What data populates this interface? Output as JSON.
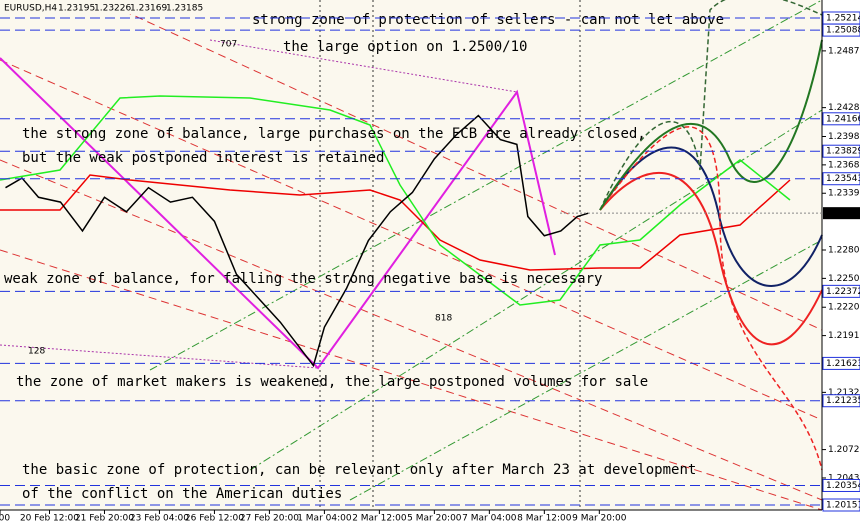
{
  "chart_data": {
    "type": "line",
    "title": "EURUSD,H4",
    "ohlc": [
      1.23195,
      1.23226,
      1.23169,
      1.23185
    ],
    "x": [
      0,
      3,
      6,
      10,
      14,
      18,
      22,
      26,
      30,
      34,
      38,
      42,
      46,
      50,
      54,
      56,
      58,
      62,
      66,
      70,
      74,
      78,
      82,
      86,
      90,
      93,
      95,
      98,
      101,
      104,
      106
    ],
    "series": [
      {
        "color": "#000000",
        "values": [
          1.2345,
          1.2355,
          1.2335,
          1.233,
          1.23,
          1.2335,
          1.232,
          1.2345,
          1.233,
          1.2335,
          1.231,
          1.2255,
          1.223,
          1.2205,
          1.2175,
          1.216,
          1.22,
          1.224,
          1.229,
          1.232,
          1.234,
          1.2375,
          1.24,
          1.242,
          1.2395,
          1.239,
          1.2315,
          1.2295,
          1.23,
          1.2315,
          1.23185
        ]
      }
    ],
    "xlim": [
      -1,
      148.5
    ],
    "xticks": [
      {
        "value": -1,
        "label": "0:00"
      },
      {
        "value": 8,
        "label": "20 Feb 12:00"
      },
      {
        "value": 18,
        "label": "21 Feb 20:00"
      },
      {
        "value": 28,
        "label": "23 Feb 04:00"
      },
      {
        "value": 38,
        "label": "26 Feb 12:00"
      },
      {
        "value": 48,
        "label": "27 Feb 20:00"
      },
      {
        "value": 58,
        "label": "1 Mar 04:00"
      },
      {
        "value": 68,
        "label": "2 Mar 12:00"
      },
      {
        "value": 78,
        "label": "5 Mar 20:00"
      },
      {
        "value": 88,
        "label": "7 Mar 04:00"
      },
      {
        "value": 98,
        "label": "8 Mar 12:00"
      },
      {
        "value": 108,
        "label": "9 Mar 20:00"
      }
    ],
    "ylim": [
      1.20099,
      1.25401
    ],
    "yticks": [
      1.24872,
      1.24282,
      1.23982,
      1.23687,
      1.23392,
      1.22802,
      1.22507,
      1.22207,
      1.21912,
      1.21322,
      1.20727,
      1.20432
    ],
    "levels": [
      1.25214,
      1.25088,
      1.24166,
      1.23829,
      1.23543,
      1.22372,
      1.21623,
      1.21235,
      1.20354,
      1.20151
    ],
    "last_price": 1.23185,
    "fib_labels": [
      "707",
      "818",
      "128"
    ],
    "annotations": [
      "strong zone of protection of sellers - can not let above",
      "the large option on 1.2500/10",
      "the strong zone of balance, large purchases on the ECB are already closed,",
      "but the weak postponed interest is retained",
      "weak zone of balance, for falling the strong negative base is necessary",
      "the zone of market makers is weakened, the large postponed volumes for sale",
      "the basic zone of protection, can be relevant only after March 23 at development",
      "of the conflict on the American duties"
    ]
  }
}
